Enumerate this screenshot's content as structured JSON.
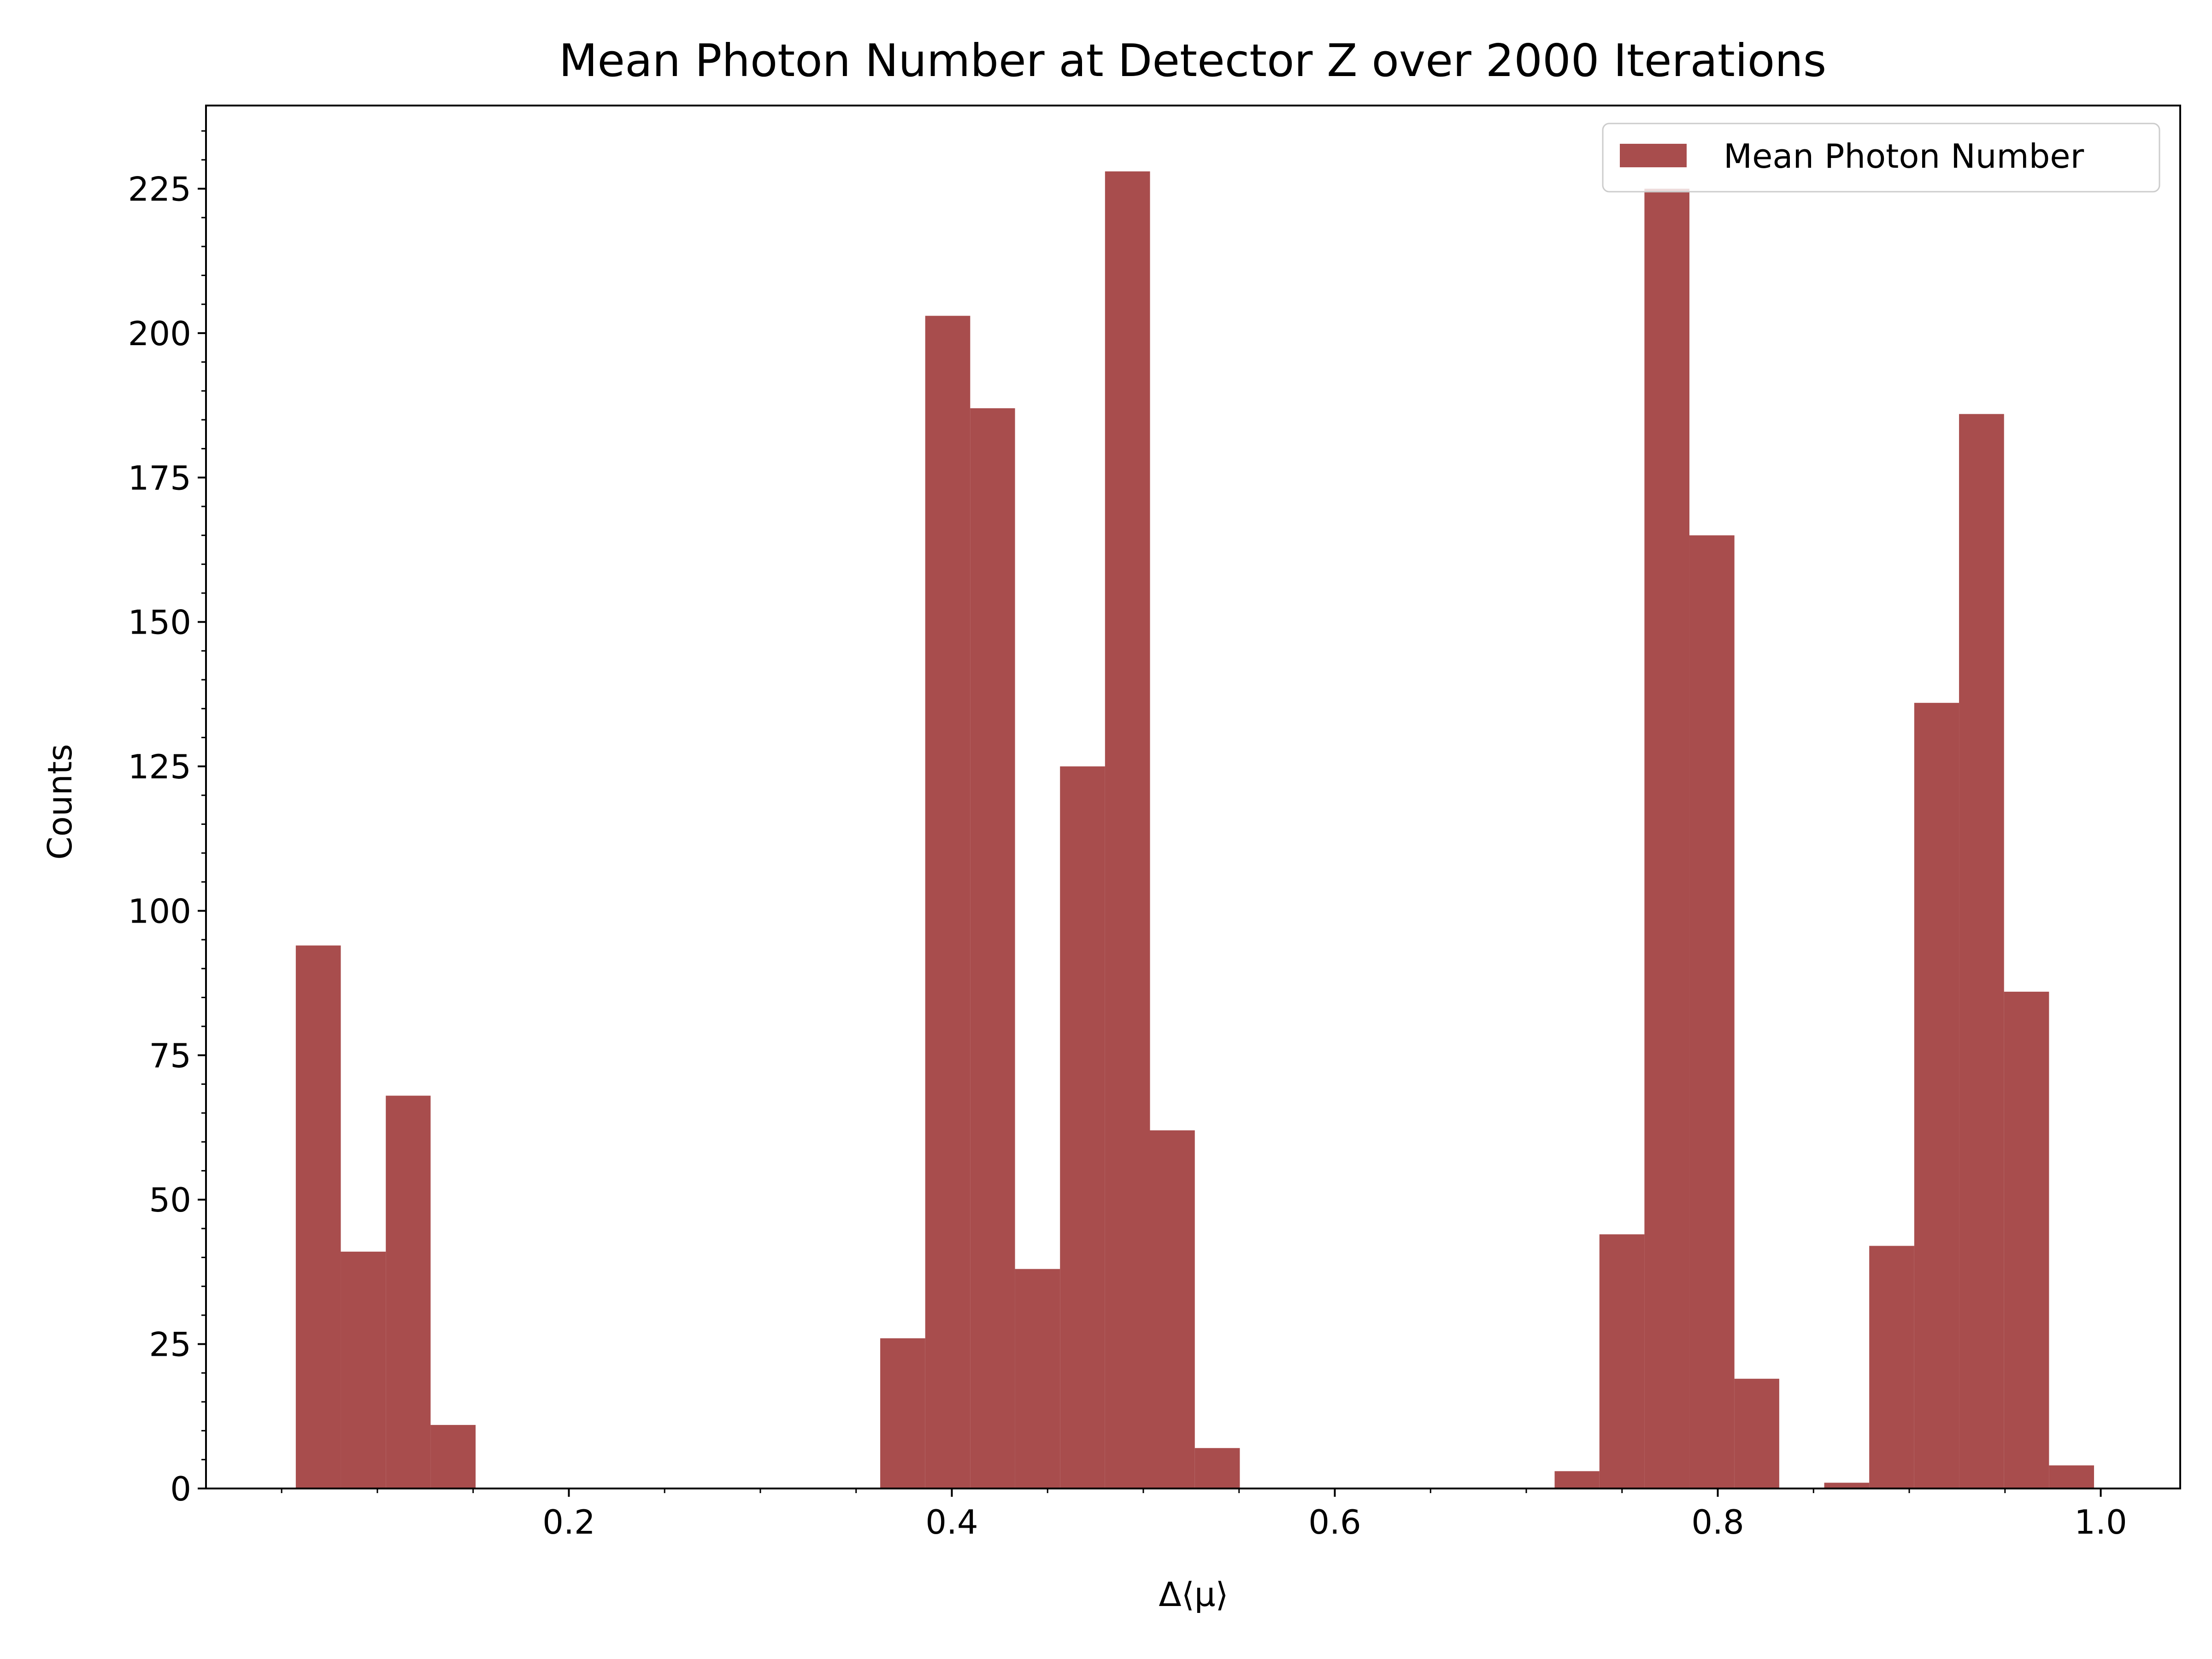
{
  "chart_data": {
    "type": "bar",
    "title": "Mean Photon Number at Detector Z over 2000 Iterations",
    "xlabel": "Δ⟨μ⟩",
    "ylabel": "Counts",
    "xlim": [
      0.0105,
      1.0415
    ],
    "ylim": [
      0,
      239.4
    ],
    "x_ticks": [
      0.2,
      0.4,
      0.6,
      0.8,
      1.0
    ],
    "x_tick_labels": [
      "0.2",
      "0.4",
      "0.6",
      "0.8",
      "1.0"
    ],
    "y_ticks": [
      0,
      25,
      50,
      75,
      100,
      125,
      150,
      175,
      200,
      225
    ],
    "y_tick_labels": [
      "0",
      "25",
      "50",
      "75",
      "100",
      "125",
      "150",
      "175",
      "200",
      "225"
    ],
    "bin_edges": [
      0.0574,
      0.0809,
      0.1044,
      0.1278,
      0.1513,
      0.1748,
      0.1983,
      0.2217,
      0.2452,
      0.2687,
      0.2922,
      0.3156,
      0.3391,
      0.3626,
      0.3861,
      0.4096,
      0.433,
      0.4565,
      0.48,
      0.5035,
      0.5269,
      0.5504,
      0.5739,
      0.5974,
      0.6208,
      0.6443,
      0.6678,
      0.6913,
      0.7148,
      0.7382,
      0.7617,
      0.7852,
      0.8087,
      0.8321,
      0.8556,
      0.8791,
      0.9026,
      0.926,
      0.9495,
      0.973,
      0.9965
    ],
    "counts": [
      94,
      41,
      68,
      11,
      0,
      0,
      0,
      0,
      0,
      0,
      0,
      0,
      0,
      26,
      203,
      187,
      38,
      125,
      228,
      62,
      7,
      0,
      0,
      0,
      0,
      0,
      0,
      0,
      3,
      44,
      225,
      165,
      19,
      0,
      1,
      42,
      136,
      186,
      86,
      4
    ],
    "series": [
      {
        "name": "Mean Photon Number",
        "color": "#a84d4d"
      }
    ],
    "legend_position": "top-right",
    "grid": false
  }
}
